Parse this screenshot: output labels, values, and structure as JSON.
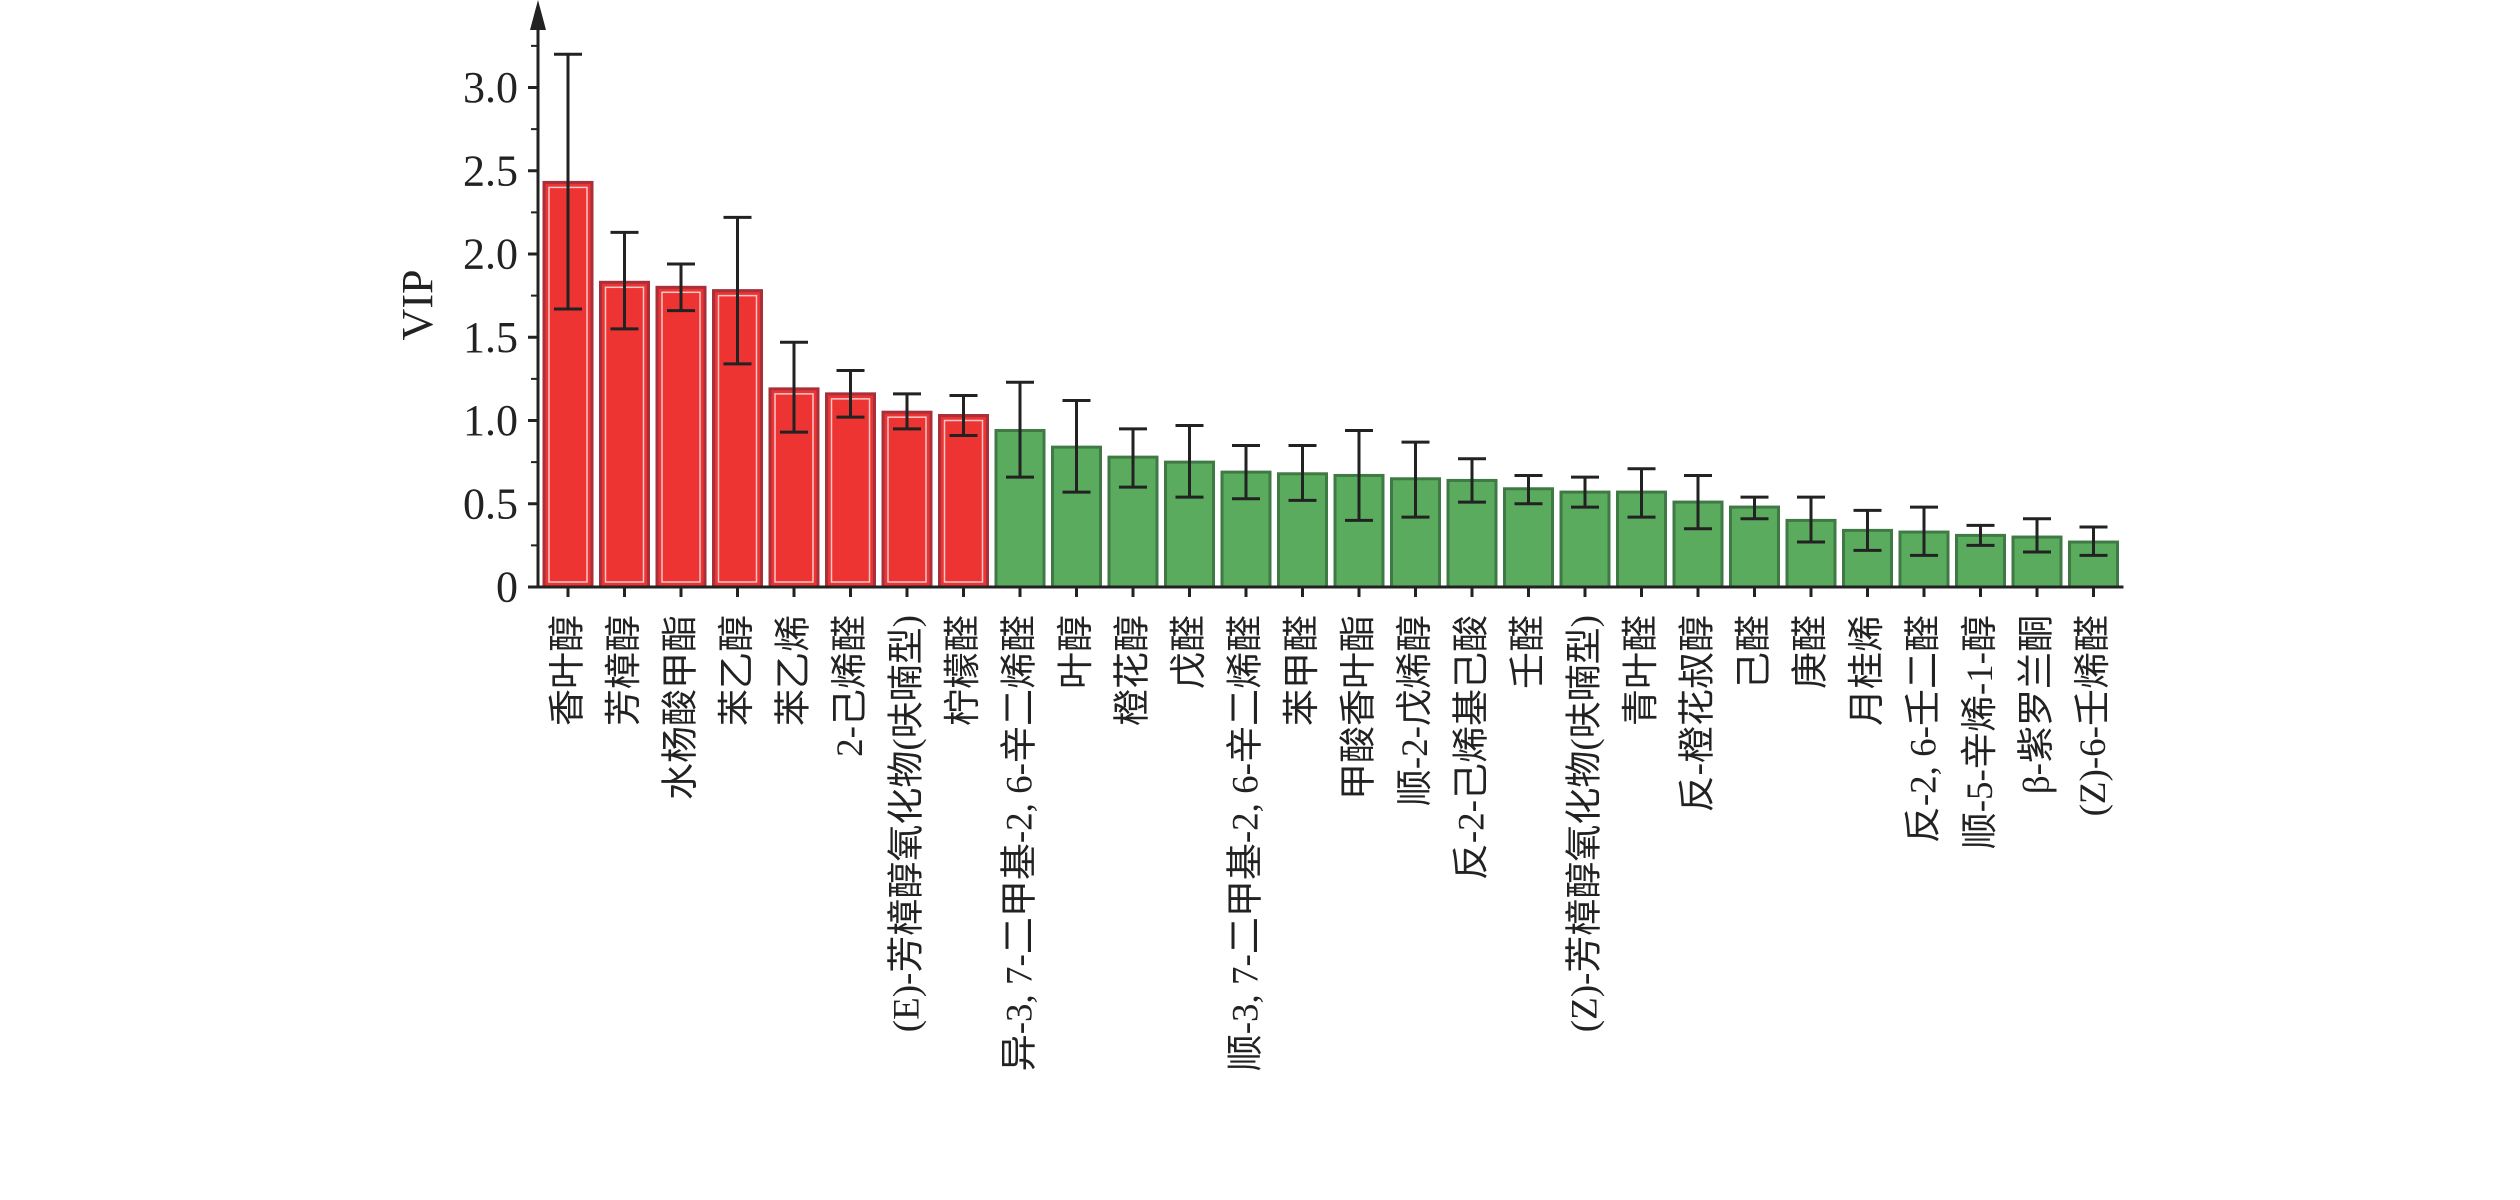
{
  "chart_data": {
    "type": "bar",
    "title": "",
    "xlabel": "",
    "ylabel": "VIP",
    "ylim": [
      0,
      3.3
    ],
    "yticks": [
      "0",
      "0.5",
      "1.0",
      "1.5",
      "2.0",
      "2.5",
      "3.0"
    ],
    "ytick_values": [
      0,
      0.5,
      1.0,
      1.5,
      2.0,
      2.5,
      3.0
    ],
    "grid": false,
    "error_bars": true,
    "colors": {
      "high": "#ee3333",
      "high_edge": "#a8303a",
      "low": "#5aab5e",
      "low_edge": "#3f7a45",
      "axis": "#222222"
    },
    "categories": [
      "香叶醇",
      "芳樟醇",
      "水杨酸甲酯",
      "苯乙醇",
      "苯乙烯",
      "2-己烯醛",
      "(E)-芳樟醇氧化物(呋喃型)",
      "柠檬醛",
      "异-3, 7-二甲基-2, 6-辛二烯醛",
      "叶醇",
      "橙花醇",
      "戊醛",
      "顺-3, 7-二甲基-2, 6-辛二烯醛",
      "苯甲醛",
      "甲酸香叶酯",
      "顺-2-戊烯醇",
      "反-2-己烯基己酸",
      "壬醛",
      "(Z)-芳樟醇氧化物(呋喃型)",
      "青叶醛",
      "反-橙花叔醇",
      "己醛",
      "庚醛",
      "月桂烯",
      "反-2, 6-壬二醛",
      "顺-5-辛烯-1-醇",
      "β-紫罗兰酮",
      "(Z)-6-壬烯醛"
    ],
    "values": [
      2.43,
      1.83,
      1.8,
      1.78,
      1.19,
      1.16,
      1.05,
      1.03,
      0.94,
      0.84,
      0.78,
      0.75,
      0.69,
      0.68,
      0.67,
      0.65,
      0.64,
      0.59,
      0.57,
      0.57,
      0.51,
      0.48,
      0.4,
      0.34,
      0.33,
      0.31,
      0.3,
      0.27
    ],
    "err_low": [
      1.67,
      1.55,
      1.66,
      1.34,
      0.93,
      1.02,
      0.95,
      0.91,
      0.66,
      0.57,
      0.6,
      0.54,
      0.53,
      0.52,
      0.4,
      0.42,
      0.51,
      0.5,
      0.48,
      0.42,
      0.35,
      0.41,
      0.27,
      0.22,
      0.19,
      0.25,
      0.21,
      0.19
    ],
    "err_high": [
      3.2,
      2.13,
      1.94,
      2.22,
      1.47,
      1.3,
      1.16,
      1.15,
      1.23,
      1.12,
      0.95,
      0.97,
      0.85,
      0.85,
      0.94,
      0.87,
      0.77,
      0.67,
      0.66,
      0.71,
      0.67,
      0.54,
      0.54,
      0.46,
      0.48,
      0.37,
      0.41,
      0.36
    ],
    "group": [
      "high",
      "high",
      "high",
      "high",
      "high",
      "high",
      "high",
      "high",
      "low",
      "low",
      "low",
      "low",
      "low",
      "low",
      "low",
      "low",
      "low",
      "low",
      "low",
      "low",
      "low",
      "low",
      "low",
      "low",
      "low",
      "low",
      "low",
      "low"
    ]
  }
}
